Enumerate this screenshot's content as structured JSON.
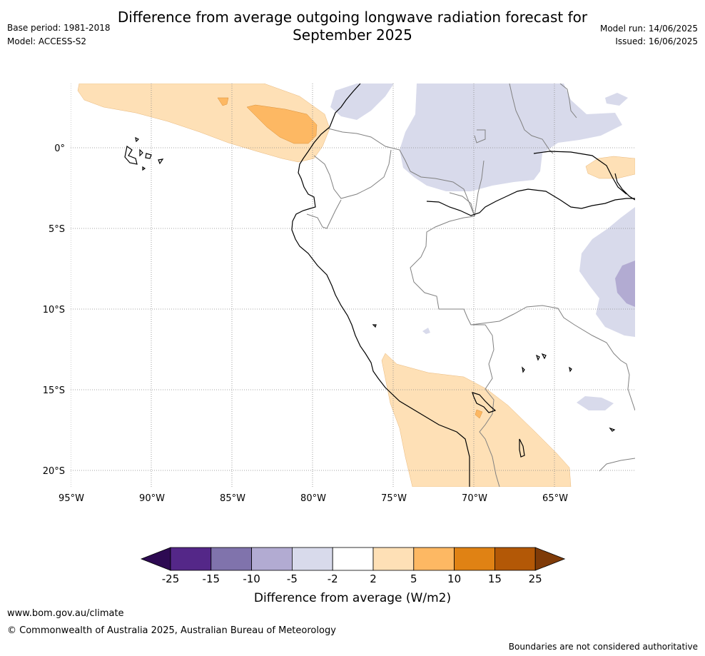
{
  "header": {
    "title_line1": "Difference from average outgoing longwave radiation forecast for",
    "title_line2": "September 2025",
    "base_period": "Base period: 1981-2018",
    "model": "Model: ACCESS-S2",
    "model_run": "Model run: 14/06/2025",
    "issued": "Issued: 16/06/2025"
  },
  "map": {
    "longitude_labels": [
      "95°W",
      "90°W",
      "85°W",
      "80°W",
      "75°W",
      "70°W",
      "65°W"
    ],
    "latitude_labels": [
      "0°",
      "5°S",
      "10°S",
      "15°S",
      "20°S"
    ],
    "colors": {
      "coast": "#000000",
      "border": "#808080",
      "gridline": "#808080"
    }
  },
  "legend": {
    "title": "Difference from average (W/m2)",
    "tick_labels": [
      "-25",
      "-15",
      "-10",
      "-5",
      "-2",
      "2",
      "5",
      "10",
      "15",
      "25"
    ],
    "colors": [
      "#2d0a52",
      "#542788",
      "#8073ac",
      "#b2abd2",
      "#d8daeb",
      "#ffffff",
      "#fee0b6",
      "#fdb863",
      "#e08214",
      "#b35806",
      "#7f3b08"
    ]
  },
  "footer": {
    "url": "www.bom.gov.au/climate",
    "copyright": "© Commonwealth of Australia 2025, Australian Bureau of Meteorology",
    "note": "Boundaries are not considered authoritative"
  }
}
